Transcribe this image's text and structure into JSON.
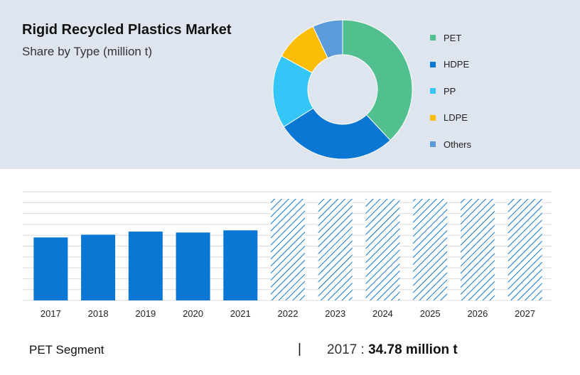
{
  "header": {
    "title": "Rigid Recycled Plastics Market",
    "subtitle": "Share by Type (million t)"
  },
  "colors": {
    "pet": "#52c08e",
    "hdpe": "#0a77d4",
    "pp": "#33c6f7",
    "ldpe": "#fbbd08",
    "others": "#5b9bd9",
    "bar": "#0a77d4",
    "grid": "#d9d9d9"
  },
  "chart_data": [
    {
      "type": "pie",
      "variant": "donut",
      "legend_position": "right",
      "categories": [
        "PET",
        "HDPE",
        "PP",
        "LDPE",
        "Others"
      ],
      "values": [
        38,
        28,
        17,
        10,
        7
      ]
    },
    {
      "type": "bar",
      "categories": [
        "2017",
        "2018",
        "2019",
        "2020",
        "2021",
        "2022",
        "2023",
        "2024",
        "2025",
        "2026",
        "2027"
      ],
      "values": [
        34.78,
        36.3,
        38.0,
        37.5,
        38.7,
        null,
        null,
        null,
        null,
        null,
        null
      ],
      "forecast_categories": [
        "2022",
        "2023",
        "2024",
        "2025",
        "2026",
        "2027"
      ],
      "forecast_style": "hatched",
      "ylim": [
        0,
        60
      ],
      "grid": true
    }
  ],
  "footer": {
    "segment_label": "PET Segment",
    "separator": "|",
    "year_text": "2017 : ",
    "value_text": "34.78 million t"
  }
}
